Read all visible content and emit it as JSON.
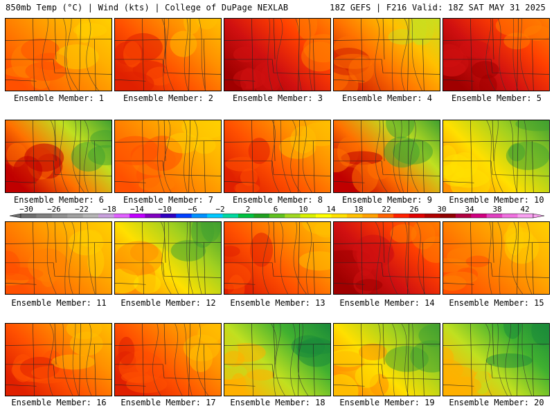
{
  "header": {
    "left": "850mb Temp (°C) | Wind (kts) | College of DuPage NEXLAB",
    "right": "18Z GEFS | F216 Valid: 18Z SAT MAY 31 2025"
  },
  "members": [
    {
      "label": "Ensemble Member: 1",
      "palette": "yo"
    },
    {
      "label": "Ensemble Member: 2",
      "palette": "or"
    },
    {
      "label": "Ensemble Member: 3",
      "palette": "rd"
    },
    {
      "label": "Ensemble Member: 4",
      "palette": "og"
    },
    {
      "label": "Ensemble Member: 5",
      "palette": "rd"
    },
    {
      "label": "Ensemble Member: 6",
      "palette": "rg"
    },
    {
      "label": "Ensemble Member: 7",
      "palette": "yo"
    },
    {
      "label": "Ensemble Member: 8",
      "palette": "or"
    },
    {
      "label": "Ensemble Member: 9",
      "palette": "rg"
    },
    {
      "label": "Ensemble Member: 10",
      "palette": "yg"
    },
    {
      "label": "Ensemble Member: 11",
      "palette": "yo"
    },
    {
      "label": "Ensemble Member: 12",
      "palette": "yg"
    },
    {
      "label": "Ensemble Member: 13",
      "palette": "or"
    },
    {
      "label": "Ensemble Member: 14",
      "palette": "rd"
    },
    {
      "label": "Ensemble Member: 15",
      "palette": "yo"
    },
    {
      "label": "Ensemble Member: 16",
      "palette": "or"
    },
    {
      "label": "Ensemble Member: 17",
      "palette": "or"
    },
    {
      "label": "Ensemble Member: 18",
      "palette": "gr"
    },
    {
      "label": "Ensemble Member: 19",
      "palette": "yg"
    },
    {
      "label": "Ensemble Member: 20",
      "palette": "gr"
    }
  ],
  "colorbar": {
    "labels": [
      "−30",
      "−26",
      "−22",
      "−18",
      "−14",
      "−10",
      "−6",
      "−2",
      "2",
      "6",
      "10",
      "14",
      "18",
      "22",
      "26",
      "30",
      "34",
      "38",
      "42"
    ],
    "colors": [
      "#6e6e6e",
      "#7f7f7f",
      "#8f8f8f",
      "#a0a0a0",
      "#b4b4b4",
      "#c8a0dc",
      "#e060ff",
      "#c000ff",
      "#8000c0",
      "#3000c0",
      "#0040ff",
      "#0090ff",
      "#00c8ff",
      "#00d8a0",
      "#00c040",
      "#20a020",
      "#60c020",
      "#a0d820",
      "#d8f000",
      "#ffff00",
      "#ffe000",
      "#ffc000",
      "#ffa000",
      "#ff6000",
      "#ff2000",
      "#e00000",
      "#b00000",
      "#900000",
      "#b00040",
      "#d00080",
      "#e040c0",
      "#f070e0",
      "#f8a0f0"
    ]
  },
  "palettes": {
    "yo": [
      "#ffd000",
      "#ffb000",
      "#ff8000",
      "#ff5000"
    ],
    "or": [
      "#ffc000",
      "#ff9000",
      "#ff5000",
      "#e02000"
    ],
    "rd": [
      "#ff8000",
      "#ff4000",
      "#d01010",
      "#a00000"
    ],
    "og": [
      "#c8e020",
      "#ffc000",
      "#ff7000",
      "#d02000"
    ],
    "rg": [
      "#40a030",
      "#c0e020",
      "#ff7000",
      "#c00000"
    ],
    "yg": [
      "#40a030",
      "#a0d020",
      "#ffe000",
      "#ff9000"
    ],
    "gr": [
      "#1a8a3a",
      "#40b030",
      "#c0e020",
      "#ffb000"
    ]
  }
}
